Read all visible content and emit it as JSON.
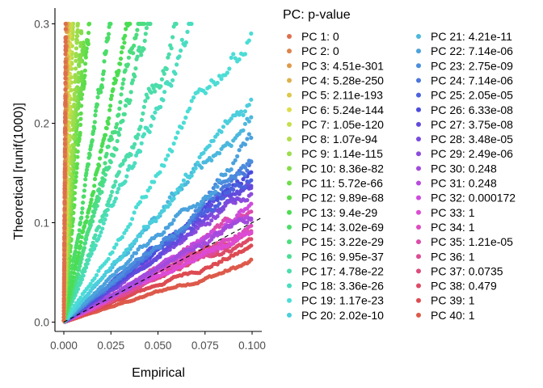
{
  "chart_data": {
    "type": "scatter",
    "xlabel": "Empirical",
    "ylabel": "Theoretical [runif(1000)]",
    "xlim": [
      0,
      0.1
    ],
    "ylim": [
      0,
      0.3
    ],
    "x_ticks": [
      "0.000",
      "0.025",
      "0.050",
      "0.075",
      "0.100"
    ],
    "y_ticks": [
      "0.0",
      "0.1",
      "0.2",
      "0.3"
    ],
    "grid": false,
    "legend_position": "right",
    "legend_title": "PC: p-value",
    "reference_line": {
      "style": "dashed",
      "slope": 1,
      "intercept": 0
    },
    "series": [
      {
        "name": "PC 1: 0",
        "slope": 300
      },
      {
        "name": "PC 2: 0",
        "slope": 250
      },
      {
        "name": "PC 3: 4.51e-301",
        "slope": 200
      },
      {
        "name": "PC 4: 5.28e-250",
        "slope": 150
      },
      {
        "name": "PC 5: 2.11e-193",
        "slope": 120
      },
      {
        "name": "PC 6: 5.24e-144",
        "slope": 100
      },
      {
        "name": "PC 7: 1.05e-120",
        "slope": 80
      },
      {
        "name": "PC 8: 1.07e-94",
        "slope": 60
      },
      {
        "name": "PC 9: 1.14e-115",
        "slope": 40
      },
      {
        "name": "PC 10: 8.36e-82",
        "slope": 32
      },
      {
        "name": "PC 11: 5.72e-66",
        "slope": 28
      },
      {
        "name": "PC 12: 9.89e-68",
        "slope": 22
      },
      {
        "name": "PC 13: 9.4e-29",
        "slope": 8.5
      },
      {
        "name": "PC 14: 3.02e-69",
        "slope": 12
      },
      {
        "name": "PC 15: 3.22e-29",
        "slope": 7
      },
      {
        "name": "PC 16: 9.95e-37",
        "slope": 6.5
      },
      {
        "name": "PC 17: 4.78e-22",
        "slope": 5
      },
      {
        "name": "PC 18: 3.36e-26",
        "slope": 4.4
      },
      {
        "name": "PC 19: 1.17e-23",
        "slope": 3
      },
      {
        "name": "PC 20: 2.02e-10",
        "slope": 2.2
      },
      {
        "name": "PC 21: 4.21e-11",
        "slope": 2.1
      },
      {
        "name": "PC 22: 7.14e-06",
        "slope": 1.8
      },
      {
        "name": "PC 23: 2.75e-09",
        "slope": 1.6
      },
      {
        "name": "PC 24: 7.14e-06",
        "slope": 1.55
      },
      {
        "name": "PC 25: 2.05e-05",
        "slope": 1.5
      },
      {
        "name": "PC 26: 6.33e-08",
        "slope": 1.45
      },
      {
        "name": "PC 27: 3.75e-08",
        "slope": 1.4
      },
      {
        "name": "PC 28: 3.48e-05",
        "slope": 1.35
      },
      {
        "name": "PC 29: 2.49e-06",
        "slope": 1.3
      },
      {
        "name": "PC 30: 0.248",
        "slope": 1.07
      },
      {
        "name": "PC 31: 0.248",
        "slope": 1.06
      },
      {
        "name": "PC 32: 0.000172",
        "slope": 1.15
      },
      {
        "name": "PC 33: 1",
        "slope": 0.95
      },
      {
        "name": "PC 34: 1",
        "slope": 0.93
      },
      {
        "name": "PC 35: 1.21e-05",
        "slope": 1.12
      },
      {
        "name": "PC 36: 1",
        "slope": 0.9
      },
      {
        "name": "PC 37: 0.0735",
        "slope": 0.98
      },
      {
        "name": "PC 38: 0.479",
        "slope": 0.85
      },
      {
        "name": "PC 39: 1",
        "slope": 0.75
      },
      {
        "name": "PC 40: 1",
        "slope": 0.6
      }
    ]
  }
}
